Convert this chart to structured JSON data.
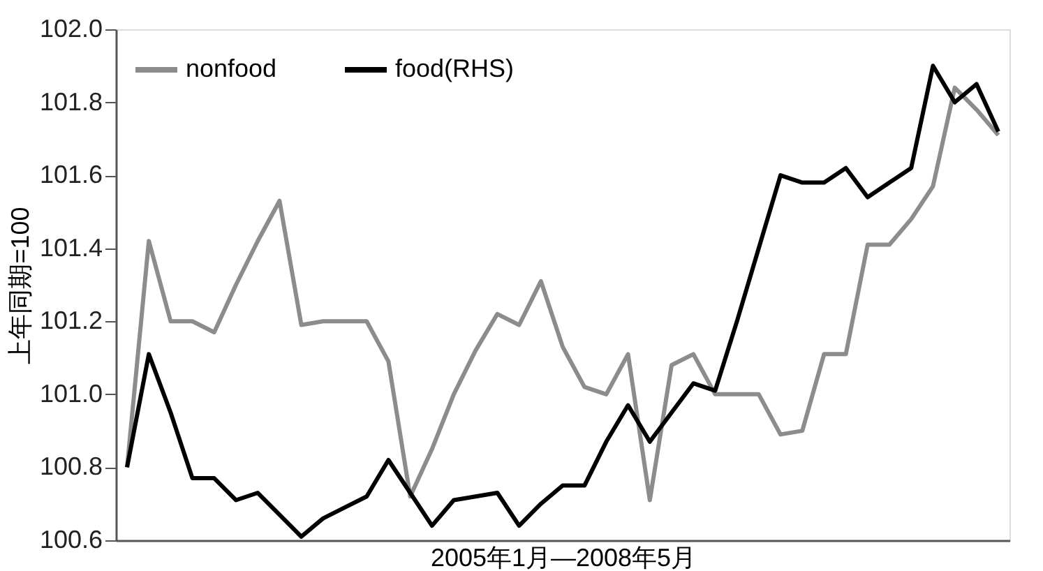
{
  "chart_data": {
    "type": "line",
    "xlabel": "2005年1月—2008年5月",
    "ylabel": "上年同期=100",
    "categories": [
      null,
      null,
      null,
      null,
      null,
      null,
      null,
      null,
      null,
      null,
      null,
      null,
      null,
      null,
      null,
      null,
      null,
      null,
      null,
      null,
      null,
      null,
      null,
      null,
      null,
      null,
      null,
      null,
      null,
      null,
      null,
      null,
      null,
      null,
      null,
      null,
      null,
      null,
      null,
      null,
      null
    ],
    "series": [
      {
        "name": "nonfood",
        "color": "#8c8c8c",
        "values": [
          100.8,
          101.42,
          101.2,
          101.2,
          101.17,
          101.3,
          101.42,
          101.53,
          101.19,
          101.2,
          101.2,
          101.2,
          101.09,
          100.72,
          100.85,
          101.0,
          101.12,
          101.22,
          101.19,
          101.31,
          101.13,
          101.02,
          101.0,
          101.11,
          100.71,
          101.08,
          101.11,
          101.0,
          101.0,
          101.0,
          100.89,
          100.9,
          101.11,
          101.11,
          101.41,
          101.41,
          101.48,
          101.57,
          101.84,
          101.78,
          101.71
        ]
      },
      {
        "name": "food(RHS)",
        "color": "#000000",
        "values": [
          100.8,
          101.11,
          100.95,
          100.77,
          100.77,
          100.71,
          100.73,
          100.67,
          100.61,
          100.66,
          100.69,
          100.72,
          100.82,
          100.73,
          100.64,
          100.71,
          100.72,
          100.73,
          100.64,
          100.7,
          100.75,
          100.75,
          100.87,
          100.97,
          100.87,
          100.95,
          101.03,
          101.01,
          101.2,
          101.4,
          101.6,
          101.58,
          101.58,
          101.62,
          101.54,
          101.58,
          101.62,
          101.9,
          101.8,
          101.85,
          101.72
        ]
      }
    ],
    "ylim": [
      100.6,
      102.0
    ],
    "yticks": [
      {
        "value": 100.6,
        "label": "100.6"
      },
      {
        "value": 100.8,
        "label": "100.8"
      },
      {
        "value": 101.0,
        "label": "101.0"
      },
      {
        "value": 101.2,
        "label": "101.2"
      },
      {
        "value": 101.4,
        "label": "101.4"
      },
      {
        "value": 101.6,
        "label": "101.6"
      },
      {
        "value": 101.8,
        "label": "101.8"
      },
      {
        "value": 102.0,
        "label": "102.0"
      }
    ],
    "tick_labels": "y",
    "legend": "top left",
    "grid": false,
    "line_style": "solid",
    "marker": "none"
  }
}
